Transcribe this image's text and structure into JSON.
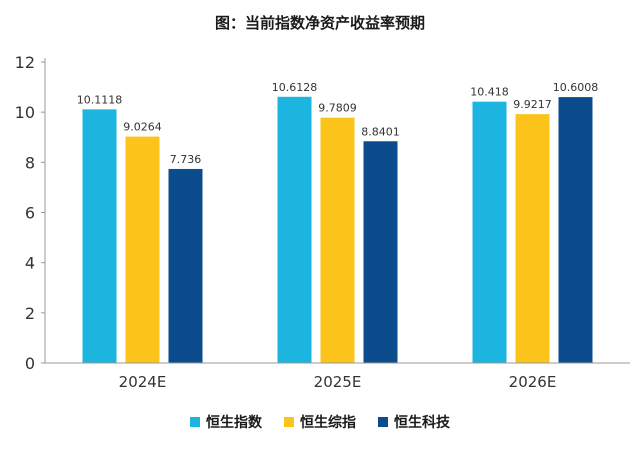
{
  "chart_data": {
    "type": "bar",
    "title": "图：当前指数净资产收益率预期",
    "categories": [
      "2024E",
      "2025E",
      "2026E"
    ],
    "series": [
      {
        "name": "恒生指数",
        "color": "#1bb5e0",
        "values": [
          10.1118,
          10.6128,
          10.418
        ],
        "labels": [
          "10.1118",
          "10.6128",
          "10.418"
        ]
      },
      {
        "name": "恒生综指",
        "color": "#fcc41a",
        "values": [
          9.0264,
          9.7809,
          9.9217
        ],
        "labels": [
          "9.0264",
          "9.7809",
          "9.9217"
        ]
      },
      {
        "name": "恒生科技",
        "color": "#0b4d8c",
        "values": [
          7.736,
          8.8401,
          10.6008
        ],
        "labels": [
          "7.736",
          "8.8401",
          "10.6008"
        ]
      }
    ],
    "ylim": [
      0,
      12
    ],
    "yticks": [
      "0",
      "2",
      "4",
      "6",
      "8",
      "10",
      "12"
    ],
    "xlabel": "",
    "ylabel": "",
    "grid": false,
    "legend_position": "bottom"
  }
}
